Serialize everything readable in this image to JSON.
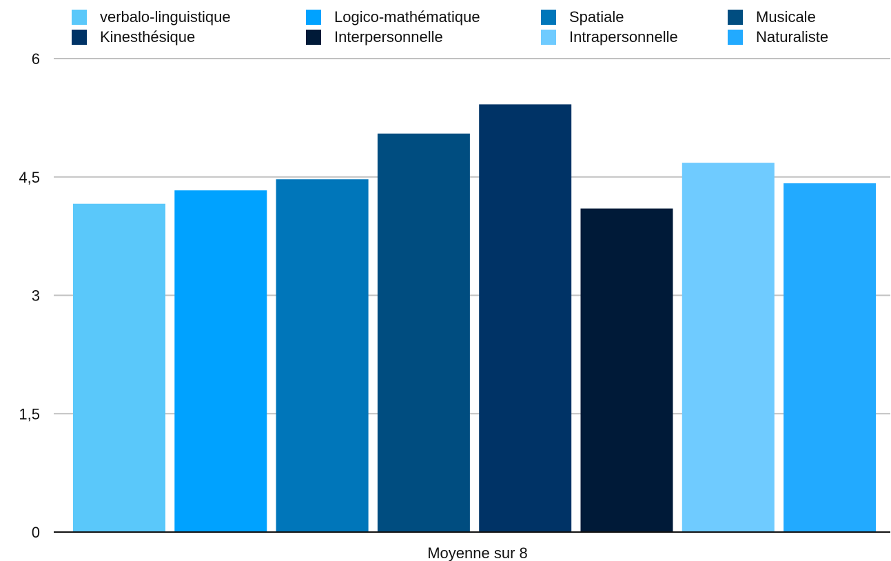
{
  "chart_data": {
    "type": "bar",
    "categories": [
      "Moyenne sur 8"
    ],
    "xlabel": "",
    "ylabel": "",
    "ylim": [
      0,
      6
    ],
    "yticks": [
      0,
      1.5,
      3,
      4.5,
      6
    ],
    "ytick_labels": [
      "0",
      "1,5",
      "3",
      "4,5",
      "6"
    ],
    "grid": true,
    "legend_position": "top",
    "series": [
      {
        "name": "verbalo-linguistique",
        "color": "#5ac8fa",
        "values": [
          4.16
        ]
      },
      {
        "name": "Logico-mathématique",
        "color": "#00a2ff",
        "values": [
          4.33
        ]
      },
      {
        "name": "Spatiale",
        "color": "#0076ba",
        "values": [
          4.47
        ]
      },
      {
        "name": "Musicale",
        "color": "#004d80",
        "values": [
          5.05
        ]
      },
      {
        "name": "Kinesthésique",
        "color": "#003366",
        "values": [
          5.42
        ]
      },
      {
        "name": "Interpersonnelle",
        "color": "#001a38",
        "values": [
          4.1
        ]
      },
      {
        "name": "Intrapersonnelle",
        "color": "#6fcbff",
        "values": [
          4.68
        ]
      },
      {
        "name": "Naturaliste",
        "color": "#22aaff",
        "values": [
          4.42
        ]
      }
    ]
  }
}
